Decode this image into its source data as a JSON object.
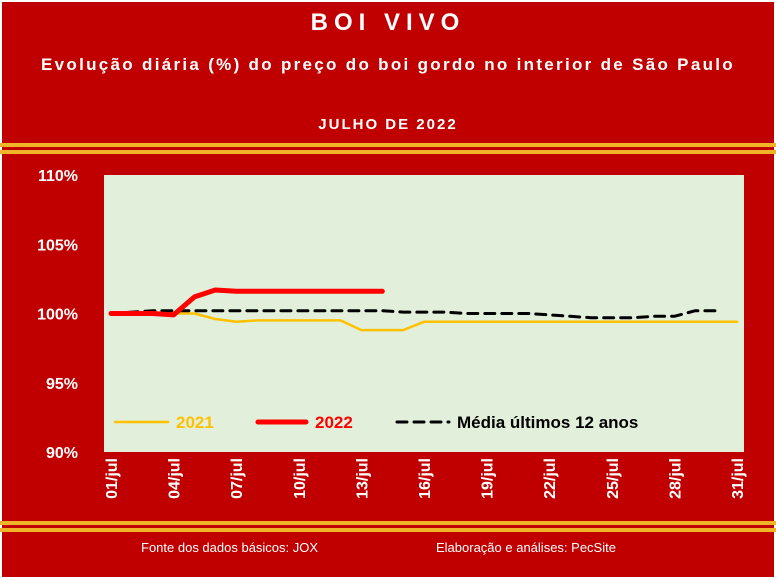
{
  "header": {
    "title": "BOI VIVO",
    "subtitle": "Evolução diária (%) do preço do boi gordo no interior de São Paulo",
    "period": "JULHO DE 2022"
  },
  "footer": {
    "source": "Fonte dos dados básicos: JOX",
    "credit": "Elaboração e análises: PecSite"
  },
  "colors": {
    "background": "#c00000",
    "plot_area": "#e2efda",
    "accent_band": "#f0b429",
    "series_2021": "#ffc000",
    "series_2022": "#ff0000",
    "series_media": "#000000",
    "text": "#ffffff"
  },
  "chart_data": {
    "type": "line",
    "xlabel": "",
    "ylabel": "",
    "ylim": [
      90,
      110
    ],
    "y_ticks": [
      "90%",
      "95%",
      "100%",
      "105%",
      "110%"
    ],
    "y_tick_values": [
      90,
      95,
      100,
      105,
      110
    ],
    "x_ticks": [
      "01/jul",
      "04/jul",
      "07/jul",
      "10/jul",
      "13/jul",
      "16/jul",
      "19/jul",
      "22/jul",
      "25/jul",
      "28/jul",
      "31/jul"
    ],
    "x_tick_days": [
      1,
      4,
      7,
      10,
      13,
      16,
      19,
      22,
      25,
      28,
      31
    ],
    "legend_position": "bottom-inside",
    "grid": false,
    "series": [
      {
        "name": "2021",
        "style": "solid",
        "x": [
          1,
          2,
          3,
          4,
          5,
          6,
          7,
          8,
          9,
          10,
          11,
          12,
          13,
          14,
          15,
          16,
          17,
          18,
          19,
          20,
          21,
          22,
          23,
          24,
          25,
          26,
          27,
          28,
          29,
          30,
          31
        ],
        "y": [
          100.0,
          100.0,
          100.0,
          100.0,
          100.0,
          99.6,
          99.4,
          99.5,
          99.5,
          99.5,
          99.5,
          99.5,
          98.8,
          98.8,
          98.8,
          99.4,
          99.4,
          99.4,
          99.4,
          99.4,
          99.4,
          99.4,
          99.4,
          99.4,
          99.4,
          99.4,
          99.4,
          99.4,
          99.4,
          99.4,
          99.4
        ]
      },
      {
        "name": "2022",
        "style": "thick",
        "x": [
          1,
          2,
          3,
          4,
          5,
          6,
          7,
          8,
          9,
          10,
          11,
          12,
          13,
          14
        ],
        "y": [
          100.0,
          100.0,
          100.0,
          99.9,
          101.2,
          101.7,
          101.6,
          101.6,
          101.6,
          101.6,
          101.6,
          101.6,
          101.6,
          101.6
        ]
      },
      {
        "name": "Média últimos 12 anos",
        "style": "dashed",
        "x": [
          1,
          2,
          3,
          4,
          5,
          6,
          7,
          8,
          9,
          10,
          11,
          12,
          13,
          14,
          15,
          16,
          17,
          18,
          19,
          20,
          21,
          22,
          23,
          24,
          25,
          26,
          27,
          28,
          29,
          30
        ],
        "y": [
          100.0,
          100.1,
          100.2,
          100.2,
          100.2,
          100.2,
          100.2,
          100.2,
          100.2,
          100.2,
          100.2,
          100.2,
          100.2,
          100.2,
          100.1,
          100.1,
          100.1,
          100.0,
          100.0,
          100.0,
          100.0,
          99.9,
          99.8,
          99.7,
          99.7,
          99.7,
          99.8,
          99.8,
          100.2,
          100.2
        ]
      }
    ]
  }
}
